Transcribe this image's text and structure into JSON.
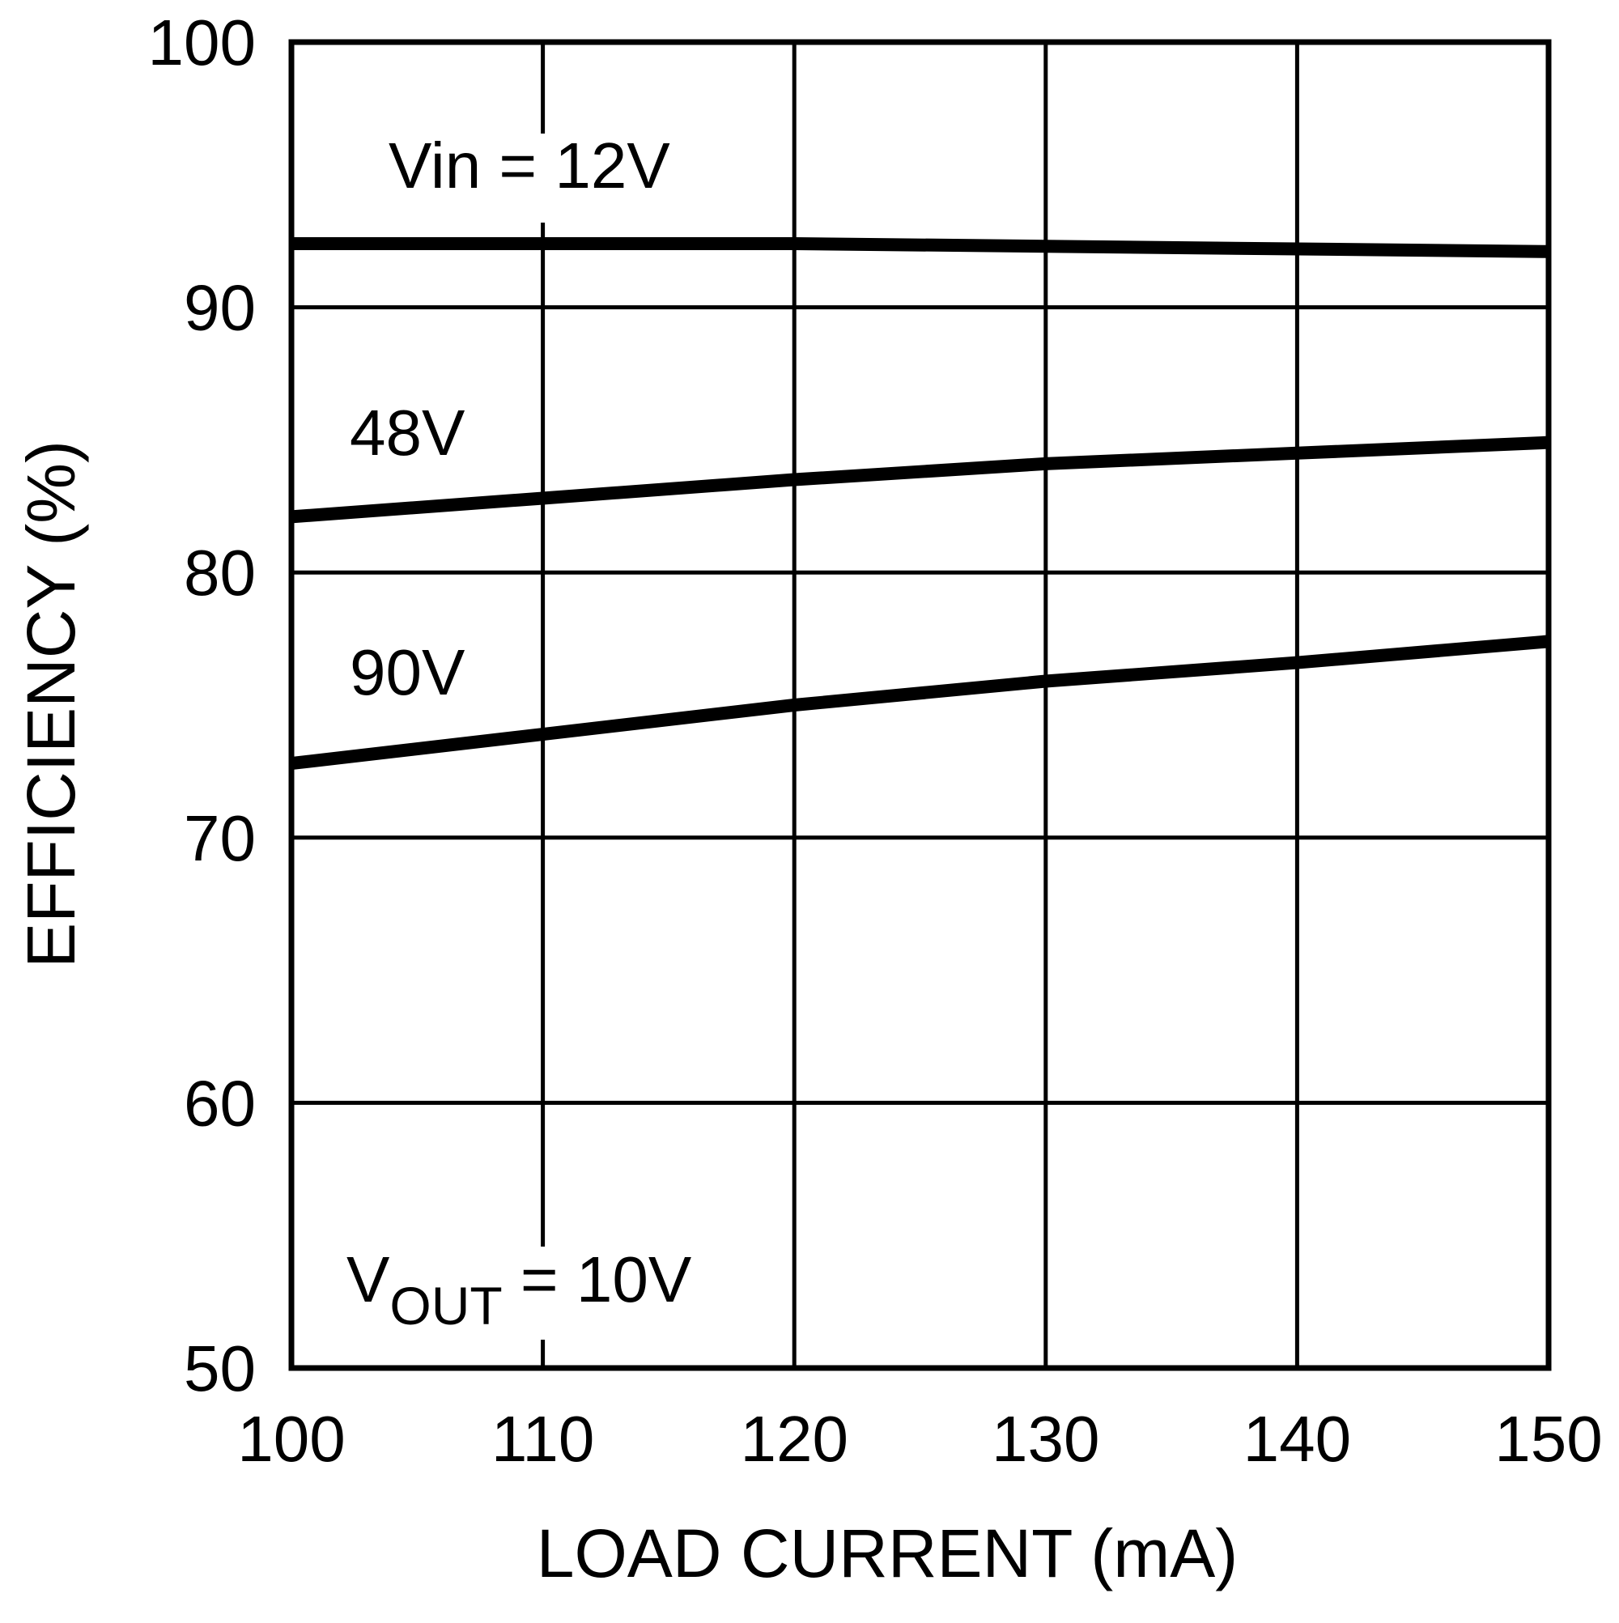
{
  "chart_data": {
    "type": "line",
    "title": "",
    "xlabel": "LOAD CURRENT (mA)",
    "ylabel": "EFFICIENCY (%)",
    "xlim": [
      100,
      150
    ],
    "ylim": [
      50,
      100
    ],
    "xticks": [
      100,
      110,
      120,
      130,
      140,
      150
    ],
    "yticks": [
      50,
      60,
      70,
      80,
      90,
      100
    ],
    "grid": true,
    "legend": "inline labels",
    "x": [
      100,
      110,
      120,
      130,
      140,
      150
    ],
    "series": [
      {
        "name": "Vin = 12V",
        "values": [
          92.4,
          92.4,
          92.4,
          92.3,
          92.2,
          92.1
        ]
      },
      {
        "name": "48V",
        "values": [
          82.1,
          82.8,
          83.5,
          84.1,
          84.5,
          84.9
        ]
      },
      {
        "name": "90V",
        "values": [
          72.8,
          73.9,
          75.0,
          75.9,
          76.6,
          77.4
        ]
      }
    ],
    "annotations": [
      {
        "text": "Vin = 12V",
        "near_series": "Vin = 12V"
      },
      {
        "text": "48V",
        "near_series": "48V"
      },
      {
        "text": "90V",
        "near_series": "90V"
      },
      {
        "text": "VOUT = 10V",
        "position": "bottom-left"
      }
    ]
  },
  "labels": {
    "series_12v": "Vin = 12V",
    "series_48v": "48V",
    "series_90v": "90V",
    "vout_main": "V",
    "vout_sub": "OUT",
    "vout_rest": " = 10V",
    "xlabel": "LOAD CURRENT (mA)",
    "ylabel": "EFFICIENCY (%)"
  },
  "colors": {
    "line": "#000000",
    "background": "#ffffff"
  }
}
